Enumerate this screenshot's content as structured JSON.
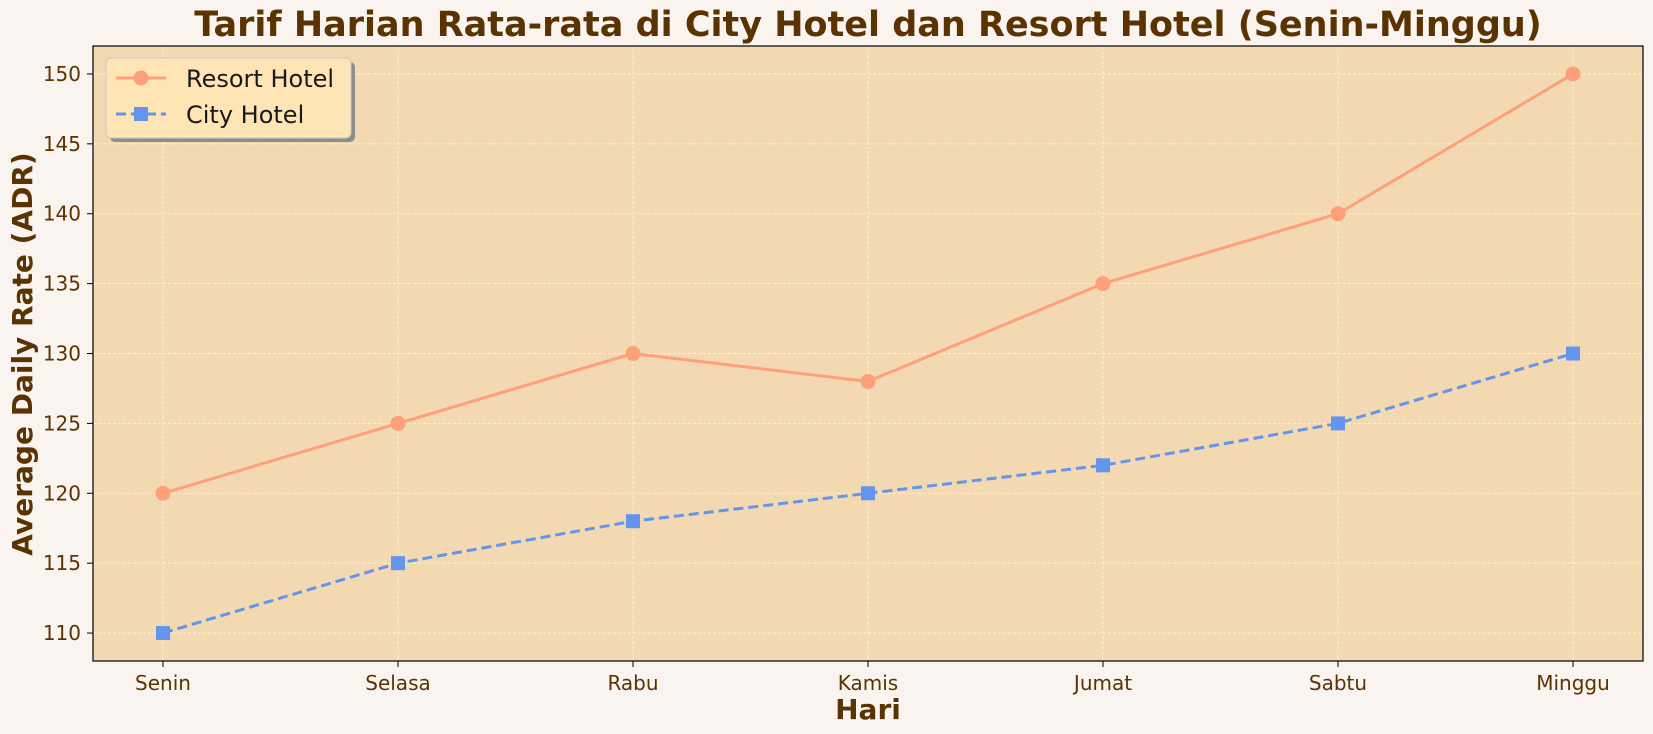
{
  "colors": {
    "page_background": "#f9f4ef",
    "plot_background": "#f3d9b1",
    "text": "#5a3300",
    "grid": "#ffffff",
    "legend_background": "#ffe4b5"
  },
  "chart_data": {
    "type": "line",
    "title": "Tarif Harian Rata-rata di City Hotel dan Resort Hotel (Senin-Minggu)",
    "xlabel": "Hari",
    "ylabel": "Average Daily Rate (ADR)",
    "categories": [
      "Senin",
      "Selasa",
      "Rabu",
      "Kamis",
      "Jumat",
      "Sabtu",
      "Minggu"
    ],
    "ylim": [
      108,
      152
    ],
    "yticks": [
      110,
      115,
      120,
      125,
      130,
      135,
      140,
      145,
      150
    ],
    "grid": true,
    "legend_position": "top-left",
    "series": [
      {
        "name": "Resort Hotel",
        "values": [
          120,
          125,
          130,
          128,
          135,
          140,
          150
        ],
        "color": "#ffa07a",
        "line_style": "solid",
        "marker": "circle"
      },
      {
        "name": "City Hotel",
        "values": [
          110,
          115,
          118,
          120,
          122,
          125,
          130
        ],
        "color": "#6495ed",
        "line_style": "dashed",
        "marker": "square"
      }
    ]
  }
}
